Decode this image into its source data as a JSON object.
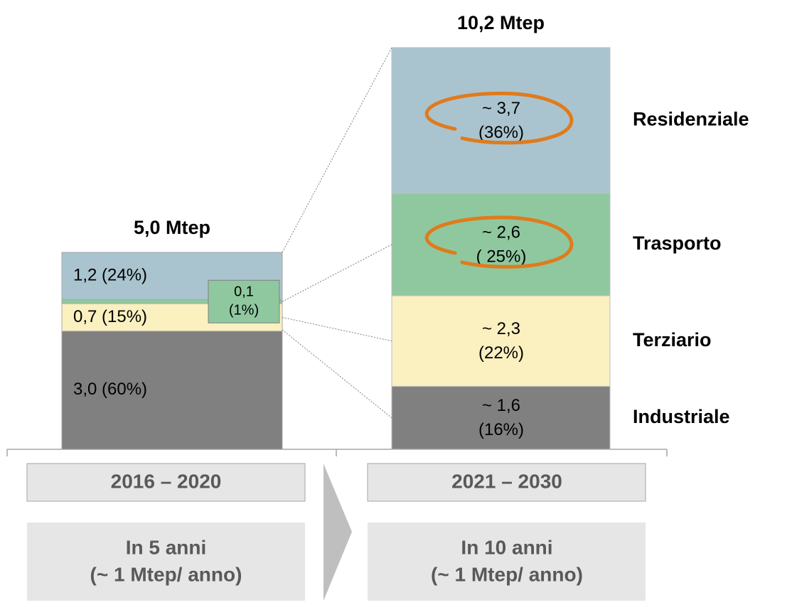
{
  "chart_data": {
    "type": "stacked_bar",
    "categories": [
      "2016 – 2020",
      "2021 – 2030"
    ],
    "totals": [
      5.0,
      10.2
    ],
    "total_labels": [
      "5,0 Mtep",
      "10,2 Mtep"
    ],
    "notes": [
      [
        "In 5 anni",
        "(~ 1 Mtep/ anno)"
      ],
      [
        "In 10 anni",
        "(~ 1 Mtep/ anno)"
      ]
    ],
    "series": [
      {
        "name": "Industriale",
        "color": "#808080",
        "values": [
          3.0,
          1.6
        ],
        "value_labels": [
          [
            "3,0 (60%)"
          ],
          [
            "~ 1,6",
            "(16%)"
          ]
        ]
      },
      {
        "name": "Terziario",
        "color": "#faf0c0",
        "values": [
          0.7,
          2.3
        ],
        "value_labels": [
          [
            "0,7 (15%)"
          ],
          [
            "~ 2,3",
            "(22%)"
          ]
        ]
      },
      {
        "name": "Trasporto",
        "color": "#8fc89f",
        "values": [
          0.1,
          2.6
        ],
        "value_labels": [
          [
            "0,1",
            "(1%)"
          ],
          [
            "~ 2,6",
            "( 25%)"
          ]
        ],
        "highlighted": true
      },
      {
        "name": "Residenziale",
        "color": "#aac4cf",
        "values": [
          1.2,
          3.7
        ],
        "value_labels": [
          [
            "1,2 (24%)"
          ],
          [
            "~ 3,7",
            "(36%)"
          ]
        ],
        "highlighted": true
      }
    ]
  }
}
